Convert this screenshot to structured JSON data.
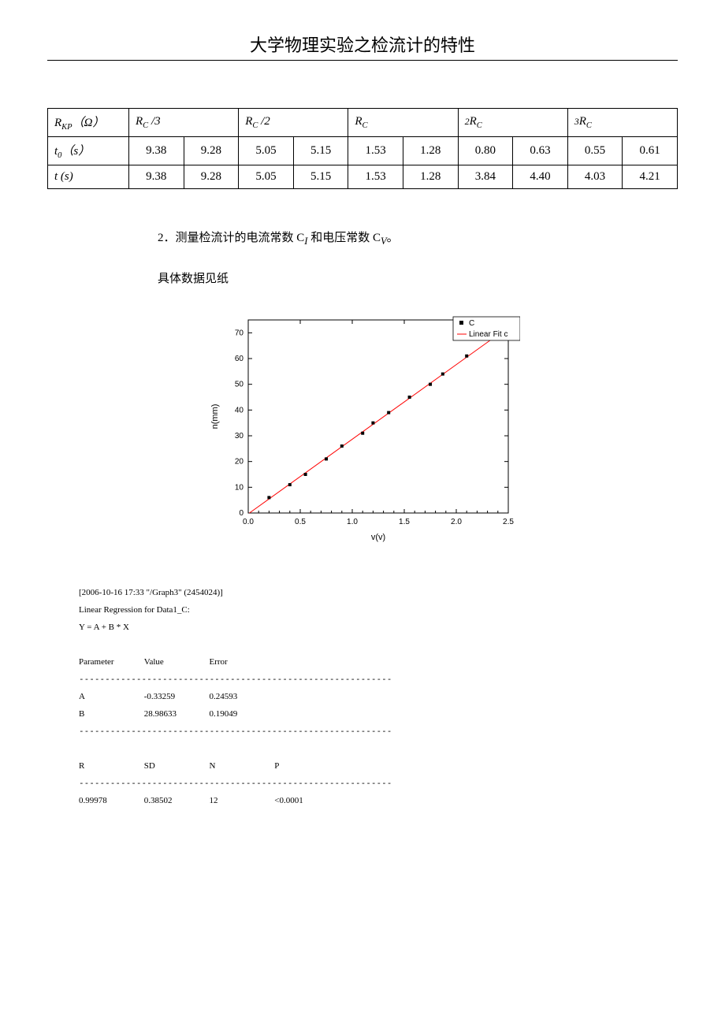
{
  "page_title": "大学物理实验之检流计的特性",
  "table": {
    "row_headers": {
      "rkp_html": "R<span class='sub'>KP</span>（Ω）",
      "t0_html": "t<span class='sub'>0</span>（s）",
      "t_html": "t (s)"
    },
    "top_headers_html": [
      "R<span class='sub'>C</span> /3",
      "R<span class='sub'>C</span> /2",
      "R<span class='sub'>C</span>",
      "<span style='font-size:0.8em'>2</span>R<span class='sub'>C</span>",
      "<span style='font-size:0.8em'>3</span>R<span class='sub'>C</span>"
    ],
    "t0_values": [
      "9.38",
      "9.28",
      "5.05",
      "5.15",
      "1.53",
      "1.28",
      "0.80",
      "0.63",
      "0.55",
      "0.61"
    ],
    "t_values": [
      "9.38",
      "9.28",
      "5.05",
      "5.15",
      "1.53",
      "1.28",
      "3.84",
      "4.40",
      "4.03",
      "4.21"
    ]
  },
  "text": {
    "line1": "2．测量检流计的电流常数 C",
    "line1_sub1": "I",
    "line1_mid": " 和电压常数 C",
    "line1_sub2": "V",
    "line1_end": "。",
    "line2": "具体数据见纸"
  },
  "chart": {
    "type": "scatter+line",
    "xlabel": "v(v)",
    "ylabel": "n(mm)",
    "xlim": [
      0.0,
      2.5
    ],
    "ylim": [
      0,
      75
    ],
    "xticks": [
      0.0,
      0.5,
      1.0,
      1.5,
      2.0,
      2.5
    ],
    "yticks": [
      0,
      10,
      20,
      30,
      40,
      50,
      60,
      70
    ],
    "line_color": "#ff0000",
    "marker_color": "#000000",
    "marker_size": 4,
    "background_color": "#ffffff",
    "legend": {
      "series_label": "C",
      "fit_label": "Linear Fit c"
    },
    "points": [
      {
        "x": 0.2,
        "y": 6
      },
      {
        "x": 0.4,
        "y": 11
      },
      {
        "x": 0.55,
        "y": 15
      },
      {
        "x": 0.75,
        "y": 21
      },
      {
        "x": 0.9,
        "y": 26
      },
      {
        "x": 1.1,
        "y": 31
      },
      {
        "x": 1.2,
        "y": 35
      },
      {
        "x": 1.35,
        "y": 39
      },
      {
        "x": 1.55,
        "y": 45
      },
      {
        "x": 1.75,
        "y": 50
      },
      {
        "x": 1.87,
        "y": 54
      },
      {
        "x": 2.1,
        "y": 61
      }
    ],
    "fit_A": -0.33259,
    "fit_B": 28.98633
  },
  "regression": {
    "header": "[2006-10-16 17:33 \"/Graph3\" (2454024)]",
    "desc": "Linear Regression for Data1_C:",
    "eqn": "Y = A + B * X",
    "param_header": [
      "Parameter",
      "Value",
      "Error"
    ],
    "rows": [
      [
        "A",
        "-0.33259",
        "0.24593"
      ],
      [
        "B",
        "28.98633",
        "0.19049"
      ]
    ],
    "stats_header": [
      "R",
      "SD",
      "N",
      "P"
    ],
    "stats_row": [
      "0.99978",
      "0.38502",
      "12",
      "<0.0001"
    ],
    "dashes": "------------------------------------------------------------"
  }
}
